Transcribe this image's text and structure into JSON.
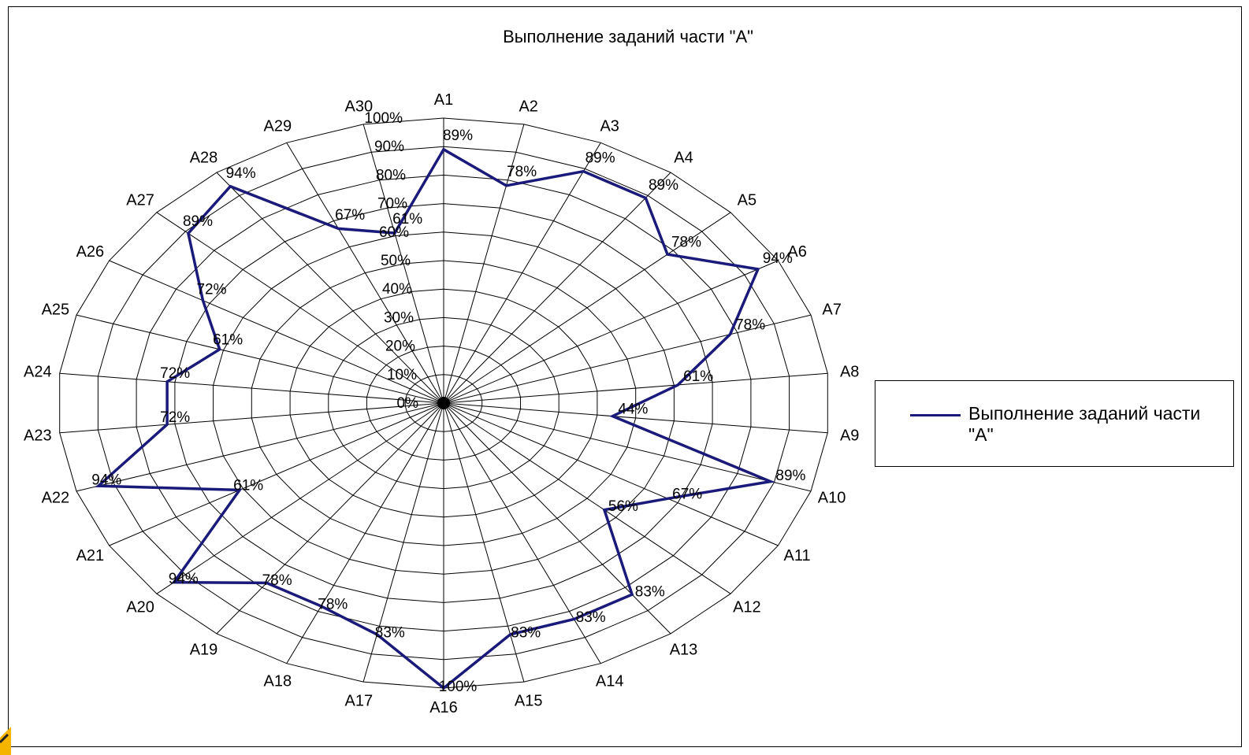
{
  "chart_data": {
    "type": "radar",
    "title": "Выполнение заданий части \"А\"",
    "categories": [
      "A1",
      "A2",
      "A3",
      "A4",
      "A5",
      "A6",
      "A7",
      "A8",
      "A9",
      "A10",
      "A11",
      "A12",
      "A13",
      "A14",
      "A15",
      "A16",
      "A17",
      "A18",
      "A19",
      "A20",
      "A21",
      "A22",
      "A23",
      "A24",
      "A25",
      "A26",
      "A27",
      "A28",
      "A29",
      "A30"
    ],
    "series": [
      {
        "name": "Выполнение заданий части \"А\"",
        "values": [
          89,
          78,
          89,
          89,
          78,
          94,
          78,
          61,
          44,
          89,
          67,
          56,
          83,
          83,
          83,
          100,
          83,
          78,
          78,
          94,
          61,
          94,
          72,
          72,
          61,
          72,
          89,
          94,
          67,
          61
        ],
        "labels": [
          "89%",
          "78%",
          "89%",
          "89%",
          "78%",
          "94%",
          "78%",
          "61%",
          "44%",
          "89%",
          "67%",
          "56%",
          "83%",
          "83%",
          "83%",
          "100%",
          "83%",
          "78%",
          "78%",
          "94%",
          "61%",
          "94%",
          "72%",
          "72%",
          "61%",
          "72%",
          "89%",
          "94%",
          "67%",
          "61%"
        ]
      }
    ],
    "radial_ticks": [
      "0%",
      "10%",
      "20%",
      "30%",
      "40%",
      "50%",
      "60%",
      "70%",
      "80%",
      "90%",
      "100%"
    ],
    "range": [
      0,
      100
    ],
    "grid": true,
    "legend_position": "right",
    "colors": {
      "series": "#1a1a7a",
      "grid": "#000000",
      "text": "#000000"
    }
  }
}
